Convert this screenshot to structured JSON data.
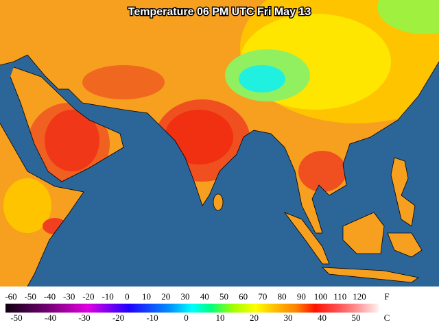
{
  "title": "Temperature 06 PM UTC Fri May 13",
  "legend": {
    "fahrenheit_ticks": [
      -60,
      -50,
      -40,
      -30,
      -20,
      -10,
      0,
      10,
      20,
      30,
      40,
      50,
      60,
      70,
      80,
      90,
      100,
      110,
      120
    ],
    "fahrenheit_unit": "F",
    "celsius_ticks": [
      -50,
      -40,
      -30,
      -20,
      -10,
      0,
      10,
      20,
      30,
      40,
      50
    ],
    "celsius_unit": "C"
  }
}
